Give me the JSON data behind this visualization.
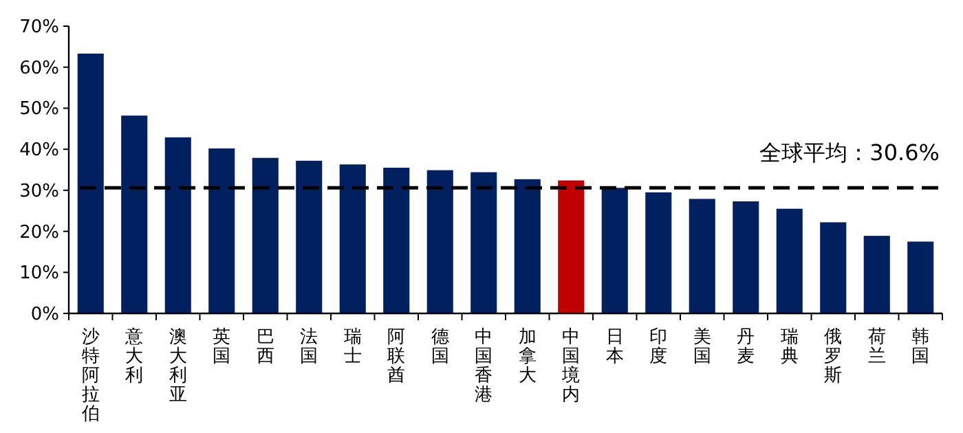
{
  "chart_data": {
    "type": "bar",
    "categories": [
      "沙特阿拉伯",
      "意大利",
      "澳大利亚",
      "英国",
      "巴西",
      "法国",
      "瑞士",
      "阿联酋",
      "德国",
      "中国香港",
      "加拿大",
      "中国境内",
      "日本",
      "印度",
      "美国",
      "丹麦",
      "瑞典",
      "俄罗斯",
      "荷兰",
      "韩国"
    ],
    "values": [
      63.3,
      48.2,
      42.9,
      40.2,
      37.9,
      37.2,
      36.3,
      35.5,
      34.9,
      34.4,
      32.7,
      32.4,
      30.6,
      29.5,
      27.9,
      27.3,
      25.5,
      22.2,
      18.9,
      17.5
    ],
    "colors": [
      "#002060",
      "#002060",
      "#002060",
      "#002060",
      "#002060",
      "#002060",
      "#002060",
      "#002060",
      "#002060",
      "#002060",
      "#002060",
      "#c00000",
      "#002060",
      "#002060",
      "#002060",
      "#002060",
      "#002060",
      "#002060",
      "#002060",
      "#002060"
    ],
    "ylim": [
      0,
      70
    ],
    "yticks": [
      {
        "value": 0,
        "label": "0%"
      },
      {
        "value": 10,
        "label": "10%"
      },
      {
        "value": 20,
        "label": "20%"
      },
      {
        "value": 30,
        "label": "30%"
      },
      {
        "value": 40,
        "label": "40%"
      },
      {
        "value": 50,
        "label": "50%"
      },
      {
        "value": 60,
        "label": "60%"
      },
      {
        "value": 70,
        "label": "70%"
      }
    ],
    "ref_lines": [
      {
        "axis": "y",
        "value": 30.6,
        "label": "全球平均：30.6%",
        "color": "#000000",
        "line_style": "dashed"
      }
    ],
    "grid": false
  }
}
